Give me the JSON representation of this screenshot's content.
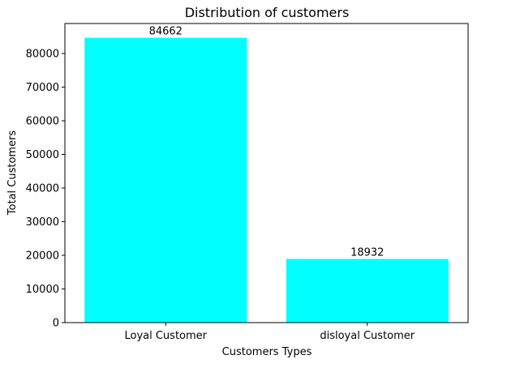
{
  "chart_data": {
    "type": "bar",
    "title": "Distribution of customers",
    "xlabel": "Customers Types",
    "ylabel": "Total Customers",
    "categories": [
      "Loyal Customer",
      "disloyal Customer"
    ],
    "values": [
      84662,
      18932
    ],
    "data_labels": [
      "84662",
      "18932"
    ],
    "ylim": [
      0,
      88898
    ],
    "yticks": [
      0,
      10000,
      20000,
      30000,
      40000,
      50000,
      60000,
      70000,
      80000
    ],
    "ytick_labels": [
      "0",
      "10000",
      "20000",
      "30000",
      "40000",
      "50000",
      "60000",
      "70000",
      "80000"
    ],
    "grid": false,
    "legend": "none",
    "colors": {
      "bar": "#00ffff",
      "axis": "#000000",
      "background": "#ffffff"
    }
  }
}
